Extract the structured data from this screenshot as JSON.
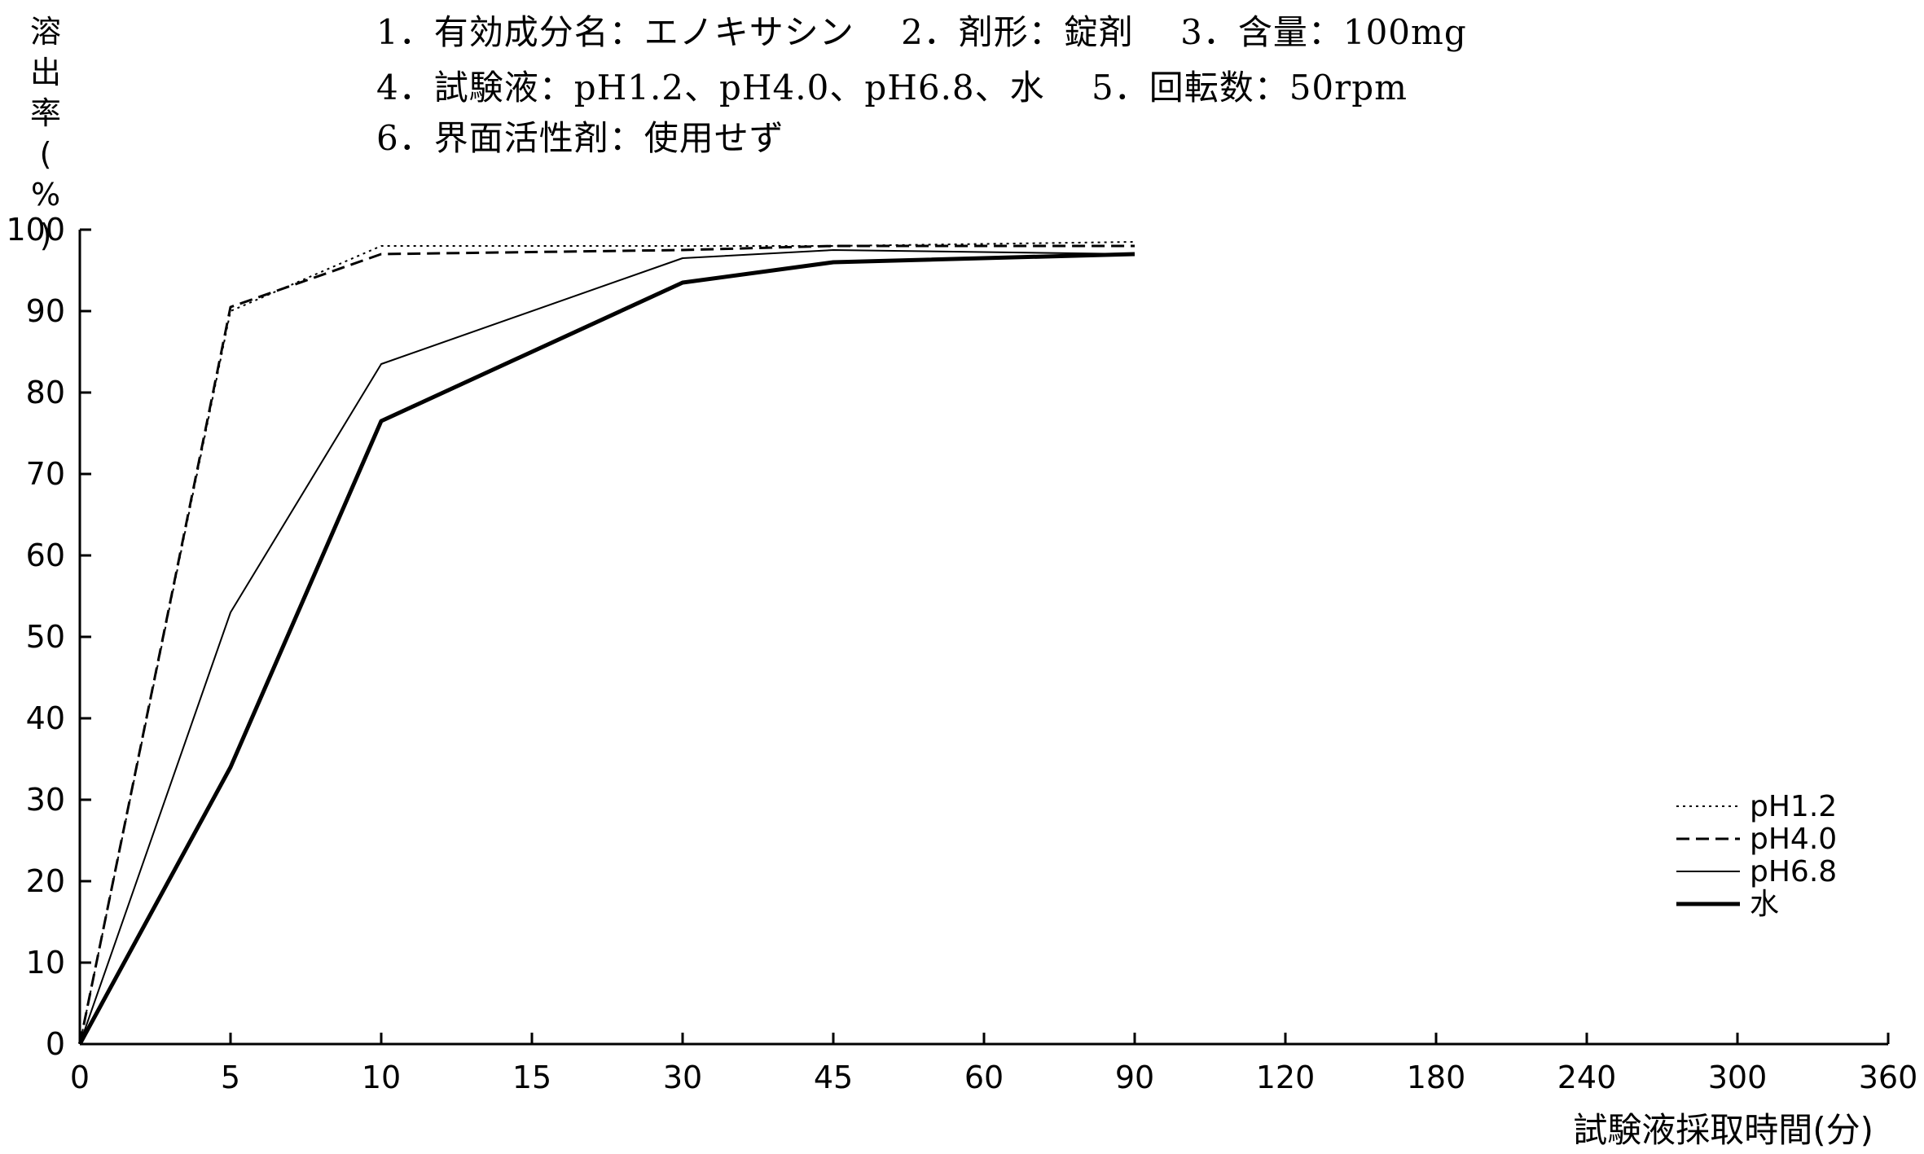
{
  "info": {
    "line1": "1．有効成分名：エノキサシン　 2．剤形：錠剤　 3．含量：100mg",
    "line2": "4．試験液：pH1.2、pH4.0、pH6.8、水　 5．回転数：50rpm",
    "line3": "6．界面活性剤：使用せず"
  },
  "chart_data": {
    "type": "line",
    "title": "",
    "xlabel": "試験液採取時間(分)",
    "ylabel": "溶出率(%)",
    "categories": [
      "0",
      "5",
      "10",
      "15",
      "30",
      "45",
      "60",
      "90",
      "120",
      "180",
      "240",
      "300",
      "360"
    ],
    "ylim": [
      0,
      100
    ],
    "yticks": [
      "0",
      "10",
      "20",
      "30",
      "40",
      "50",
      "60",
      "70",
      "80",
      "90",
      "100"
    ],
    "grid": false,
    "legend_position": "bottom-right",
    "series": [
      {
        "name": "pH1.2",
        "style": "dotted",
        "x": [
          "0",
          "5",
          "10",
          "30",
          "45",
          "90"
        ],
        "values": [
          0,
          90,
          98,
          98,
          98,
          98.5
        ]
      },
      {
        "name": "pH4.0",
        "style": "dashed",
        "x": [
          "0",
          "5",
          "10",
          "30",
          "45",
          "90"
        ],
        "values": [
          0,
          90.5,
          97,
          97.5,
          98,
          98
        ]
      },
      {
        "name": "pH6.8",
        "style": "thin",
        "x": [
          "0",
          "5",
          "10",
          "30",
          "45",
          "90"
        ],
        "values": [
          0,
          53,
          83.5,
          96.5,
          97.5,
          97
        ]
      },
      {
        "name": "水",
        "style": "thick",
        "x": [
          "0",
          "5",
          "10",
          "30",
          "45",
          "90"
        ],
        "values": [
          0,
          34,
          76.5,
          93.5,
          96,
          97
        ]
      }
    ]
  }
}
